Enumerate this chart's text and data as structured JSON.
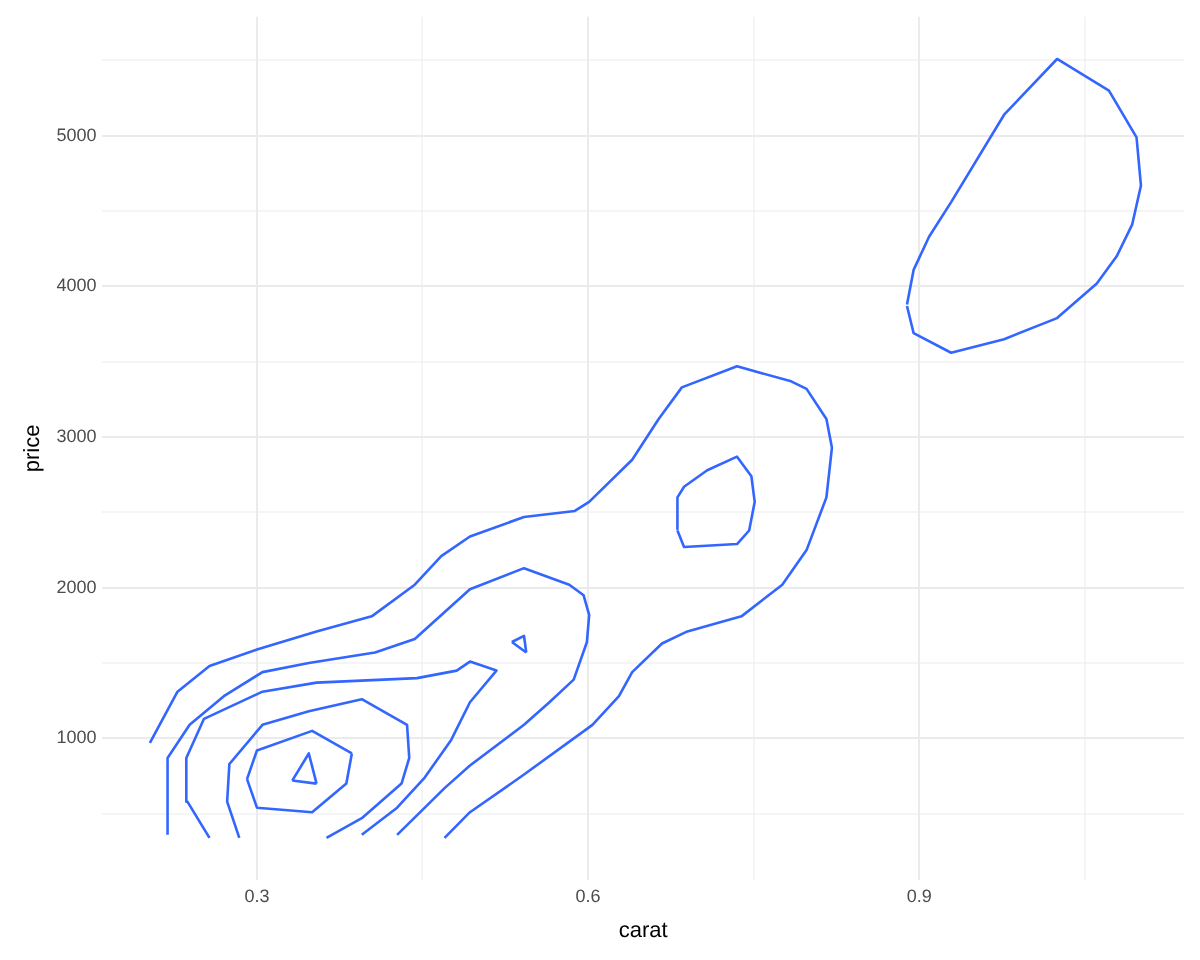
{
  "chart_data": {
    "type": "line",
    "xlabel": "carat",
    "ylabel": "price",
    "xlim": [
      0.16,
      1.14
    ],
    "ylim": [
      60,
      5790
    ],
    "xticks": [
      0.3,
      {
        "value": 0.45,
        "label": null
      },
      0.6,
      {
        "value": 0.75,
        "label": null
      },
      0.9,
      {
        "value": 1.05,
        "label": null
      }
    ],
    "yticks": [
      {
        "value": 500,
        "label": null
      },
      1000,
      {
        "value": 1500,
        "label": null
      },
      2000,
      {
        "value": 2500,
        "label": null
      },
      3000,
      {
        "value": 3500,
        "label": null
      },
      4000,
      {
        "value": 4500,
        "label": null
      },
      5000,
      {
        "value": 5500,
        "label": null
      }
    ],
    "grid": true,
    "legend": false,
    "marker": "none",
    "line_style": "solid",
    "series": [
      {
        "color": "#3366ff",
        "x": [
          0.203,
          0.228,
          0.257,
          0.3,
          0.354,
          0.404,
          0.443,
          0.467,
          0.493,
          0.542,
          0.588,
          0.601,
          0.64,
          0.664,
          0.685,
          0.735,
          0.784,
          0.798,
          0.816,
          0.821,
          0.816,
          0.798,
          0.776,
          0.739,
          0.69,
          0.667,
          0.64,
          0.628,
          0.604,
          0.542,
          0.493,
          0.47
        ],
        "values": [
          970,
          1310,
          1480,
          1590,
          1710,
          1810,
          2020,
          2210,
          2340,
          2470,
          2510,
          2570,
          2850,
          3120,
          3330,
          3470,
          3370,
          3320,
          3120,
          2930,
          2600,
          2250,
          2020,
          1810,
          1710,
          1630,
          1440,
          1280,
          1090,
          760,
          510,
          340
        ]
      },
      {
        "color": "#3366ff",
        "x": [
          0.219,
          0.219,
          0.239,
          0.27,
          0.305,
          0.347,
          0.407,
          0.443,
          0.493,
          0.542,
          0.583,
          0.596,
          0.601,
          0.599,
          0.587,
          0.565,
          0.542,
          0.493,
          0.47,
          0.427
        ],
        "values": [
          360,
          870,
          1090,
          1280,
          1440,
          1500,
          1570,
          1660,
          1990,
          2130,
          2020,
          1950,
          1820,
          1640,
          1390,
          1240,
          1090,
          820,
          670,
          360
        ]
      },
      {
        "color": "#3366ff",
        "x": [
          0.257,
          0.237,
          0.236,
          0.252,
          0.305,
          0.354,
          0.445,
          0.481,
          0.493,
          0.517,
          0.493,
          0.476,
          0.452,
          0.427,
          0.395
        ],
        "values": [
          340,
          580,
          870,
          1130,
          1310,
          1370,
          1400,
          1450,
          1510,
          1450,
          1240,
          990,
          740,
          540,
          360
        ]
      },
      {
        "color": "#3366ff",
        "x": [
          0.284,
          0.273,
          0.275,
          0.305,
          0.347,
          0.395,
          0.436,
          0.438,
          0.431,
          0.395,
          0.363
        ],
        "values": [
          340,
          580,
          830,
          1090,
          1180,
          1260,
          1090,
          870,
          700,
          470,
          340
        ]
      },
      {
        "color": "#3366ff",
        "x": [
          0.291,
          0.3,
          0.35,
          0.381,
          0.386
        ],
        "values": [
          730,
          540,
          510,
          700,
          900
        ]
      },
      {
        "color": "#3366ff",
        "x": [
          0.291,
          0.3,
          0.35,
          0.386
        ],
        "values": [
          730,
          920,
          1050,
          900
        ]
      },
      {
        "color": "#3366ff",
        "x": [
          0.332,
          0.354
        ],
        "values": [
          720,
          700
        ]
      },
      {
        "color": "#3366ff",
        "x": [
          0.332,
          0.347,
          0.354
        ],
        "values": [
          720,
          900,
          700
        ]
      },
      {
        "color": "#3366ff",
        "x": [
          0.531,
          0.544
        ],
        "values": [
          1640,
          1570
        ]
      },
      {
        "color": "#3366ff",
        "x": [
          0.531,
          0.542,
          0.544
        ],
        "values": [
          1640,
          1680,
          1570
        ]
      },
      {
        "color": "#3366ff",
        "x": [
          0.68,
          0.681,
          0.687,
          0.708,
          0.735,
          0.748,
          0.751,
          0.746,
          0.735,
          0.687,
          0.681
        ],
        "values": [
          2390,
          2600,
          2670,
          2780,
          2870,
          2740,
          2570,
          2380,
          2290,
          2270,
          2380
        ]
      },
      {
        "color": "#3366ff",
        "x": [
          0.889,
          0.895,
          0.909,
          0.929,
          0.977,
          1.025,
          1.072,
          1.097,
          1.101,
          1.093,
          1.079,
          1.061,
          1.025,
          0.977,
          0.929,
          0.895,
          0.889
        ],
        "values": [
          3880,
          4110,
          4330,
          4560,
          5140,
          5510,
          5300,
          4990,
          4670,
          4410,
          4200,
          4020,
          3790,
          3650,
          3560,
          3690,
          3870
        ]
      }
    ]
  }
}
